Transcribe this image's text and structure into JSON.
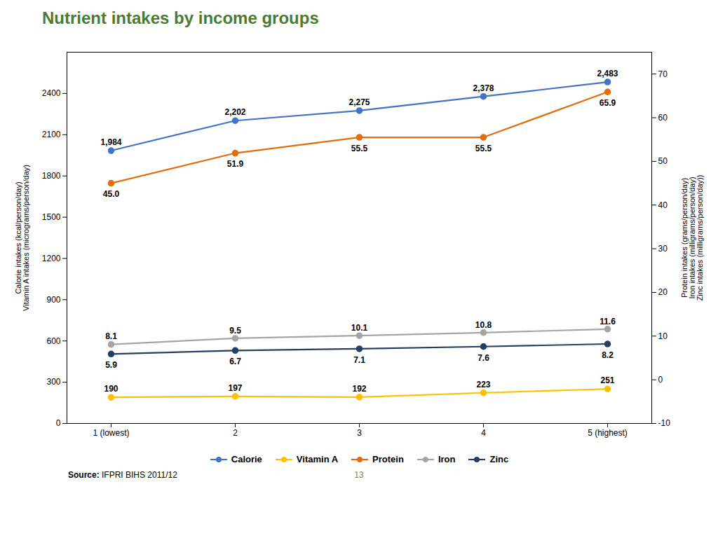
{
  "chart_data": {
    "type": "line",
    "title": "Nutrient intakes by income groups",
    "categories": [
      "1 (lowest)",
      "2",
      "3",
      "4",
      "5 (highest)"
    ],
    "series": [
      {
        "name": "Calorie",
        "color": "#4472c4",
        "marker": "circle",
        "values": [
          1984,
          2202,
          2275,
          2378,
          2483
        ],
        "value_labels": [
          "1,984",
          "2,202",
          "2,275",
          "2,378",
          "2,483"
        ]
      },
      {
        "name": "Vitamin A",
        "color": "#ffc000",
        "marker": "circle",
        "values": [
          190,
          197,
          192,
          223,
          251
        ]
      },
      {
        "name": "Protein",
        "color": "#e36c09",
        "marker": "circle",
        "axis": "y2",
        "values": [
          45.0,
          51.9,
          55.5,
          55.5,
          65.9
        ],
        "value_labels": [
          "45.0",
          "51.9",
          "55.5",
          "55.5",
          "65.9"
        ]
      },
      {
        "name": "Iron",
        "color": "#a5a5a5",
        "marker": "circle",
        "axis": "y2",
        "values": [
          8.1,
          9.5,
          10.1,
          10.8,
          11.6
        ]
      },
      {
        "name": "Zinc",
        "color": "#243f60",
        "marker": "circle",
        "axis": "y2",
        "values": [
          5.9,
          6.7,
          7.1,
          7.6,
          8.2
        ]
      }
    ],
    "ylabel": "Calorie intakes (kcal/person/day)\nVitamin A intakes (micrograms/person/day)",
    "y2label": "Protein intakes (grams/person/day)\nIron intakes (milligrams/person/day)\nZinc intakes (milligrams/person/day))",
    "ylim": [
      0,
      2700
    ],
    "yticks": [
      0,
      300,
      600,
      900,
      1200,
      1500,
      1800,
      2100,
      2400
    ],
    "y2lim": [
      -10,
      75
    ],
    "y2ticks": [
      -10,
      0,
      10,
      20,
      30,
      40,
      50,
      60,
      70
    ],
    "grid": false,
    "legend": "bottom",
    "data_labels": true,
    "annotations": [
      "Source:",
      "IFPRI BIHS 2011/12",
      "13"
    ]
  }
}
